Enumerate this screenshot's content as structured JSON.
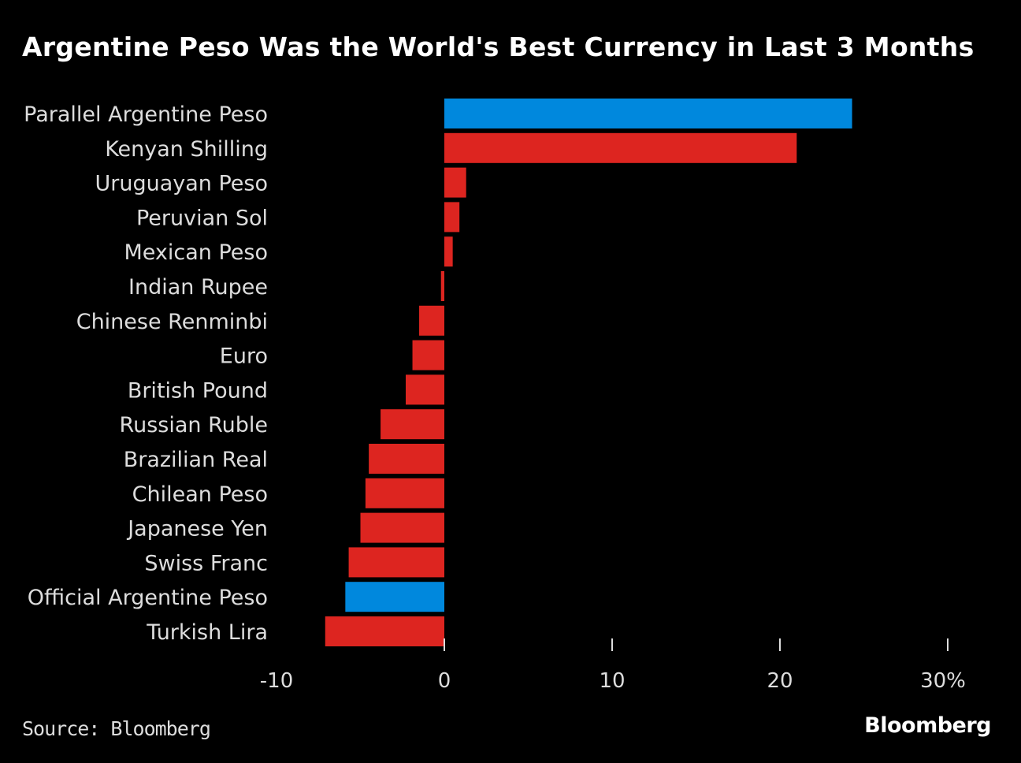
{
  "title": "Argentine Peso Was the World's Best Currency in Last 3 Months",
  "source": "Source: Bloomberg",
  "logo": "Bloomberg",
  "colors": {
    "highlight": "#0088DD",
    "default": "#DD2520",
    "text": "#DDDDDD"
  },
  "chart_data": {
    "type": "bar",
    "orientation": "horizontal",
    "title": "Argentine Peso Was the World's Best Currency in Last 3 Months",
    "xlabel": "",
    "ylabel": "",
    "xlim": [
      -10,
      30
    ],
    "categories": [
      "Parallel Argentine Peso",
      "Kenyan Shilling",
      "Uruguayan Peso",
      "Peruvian Sol",
      "Mexican Peso",
      "Indian Rupee",
      "Chinese Renminbi",
      "Euro",
      "British Pound",
      "Russian Ruble",
      "Brazilian Real",
      "Chilean Peso",
      "Japanese Yen",
      "Swiss Franc",
      "Official Argentine Peso",
      "Turkish Lira"
    ],
    "values": [
      24.3,
      21.0,
      1.3,
      0.9,
      0.5,
      -0.2,
      -1.5,
      -1.9,
      -2.3,
      -3.8,
      -4.5,
      -4.7,
      -5.0,
      -5.7,
      -5.9,
      -7.1
    ],
    "highlighted": [
      "Parallel Argentine Peso",
      "Official Argentine Peso"
    ],
    "x_ticks": [
      -10,
      0,
      10,
      20,
      30
    ],
    "x_tick_labels": [
      "-10",
      "0",
      "10",
      "20",
      "30%"
    ],
    "grid": false,
    "unit": "%"
  }
}
